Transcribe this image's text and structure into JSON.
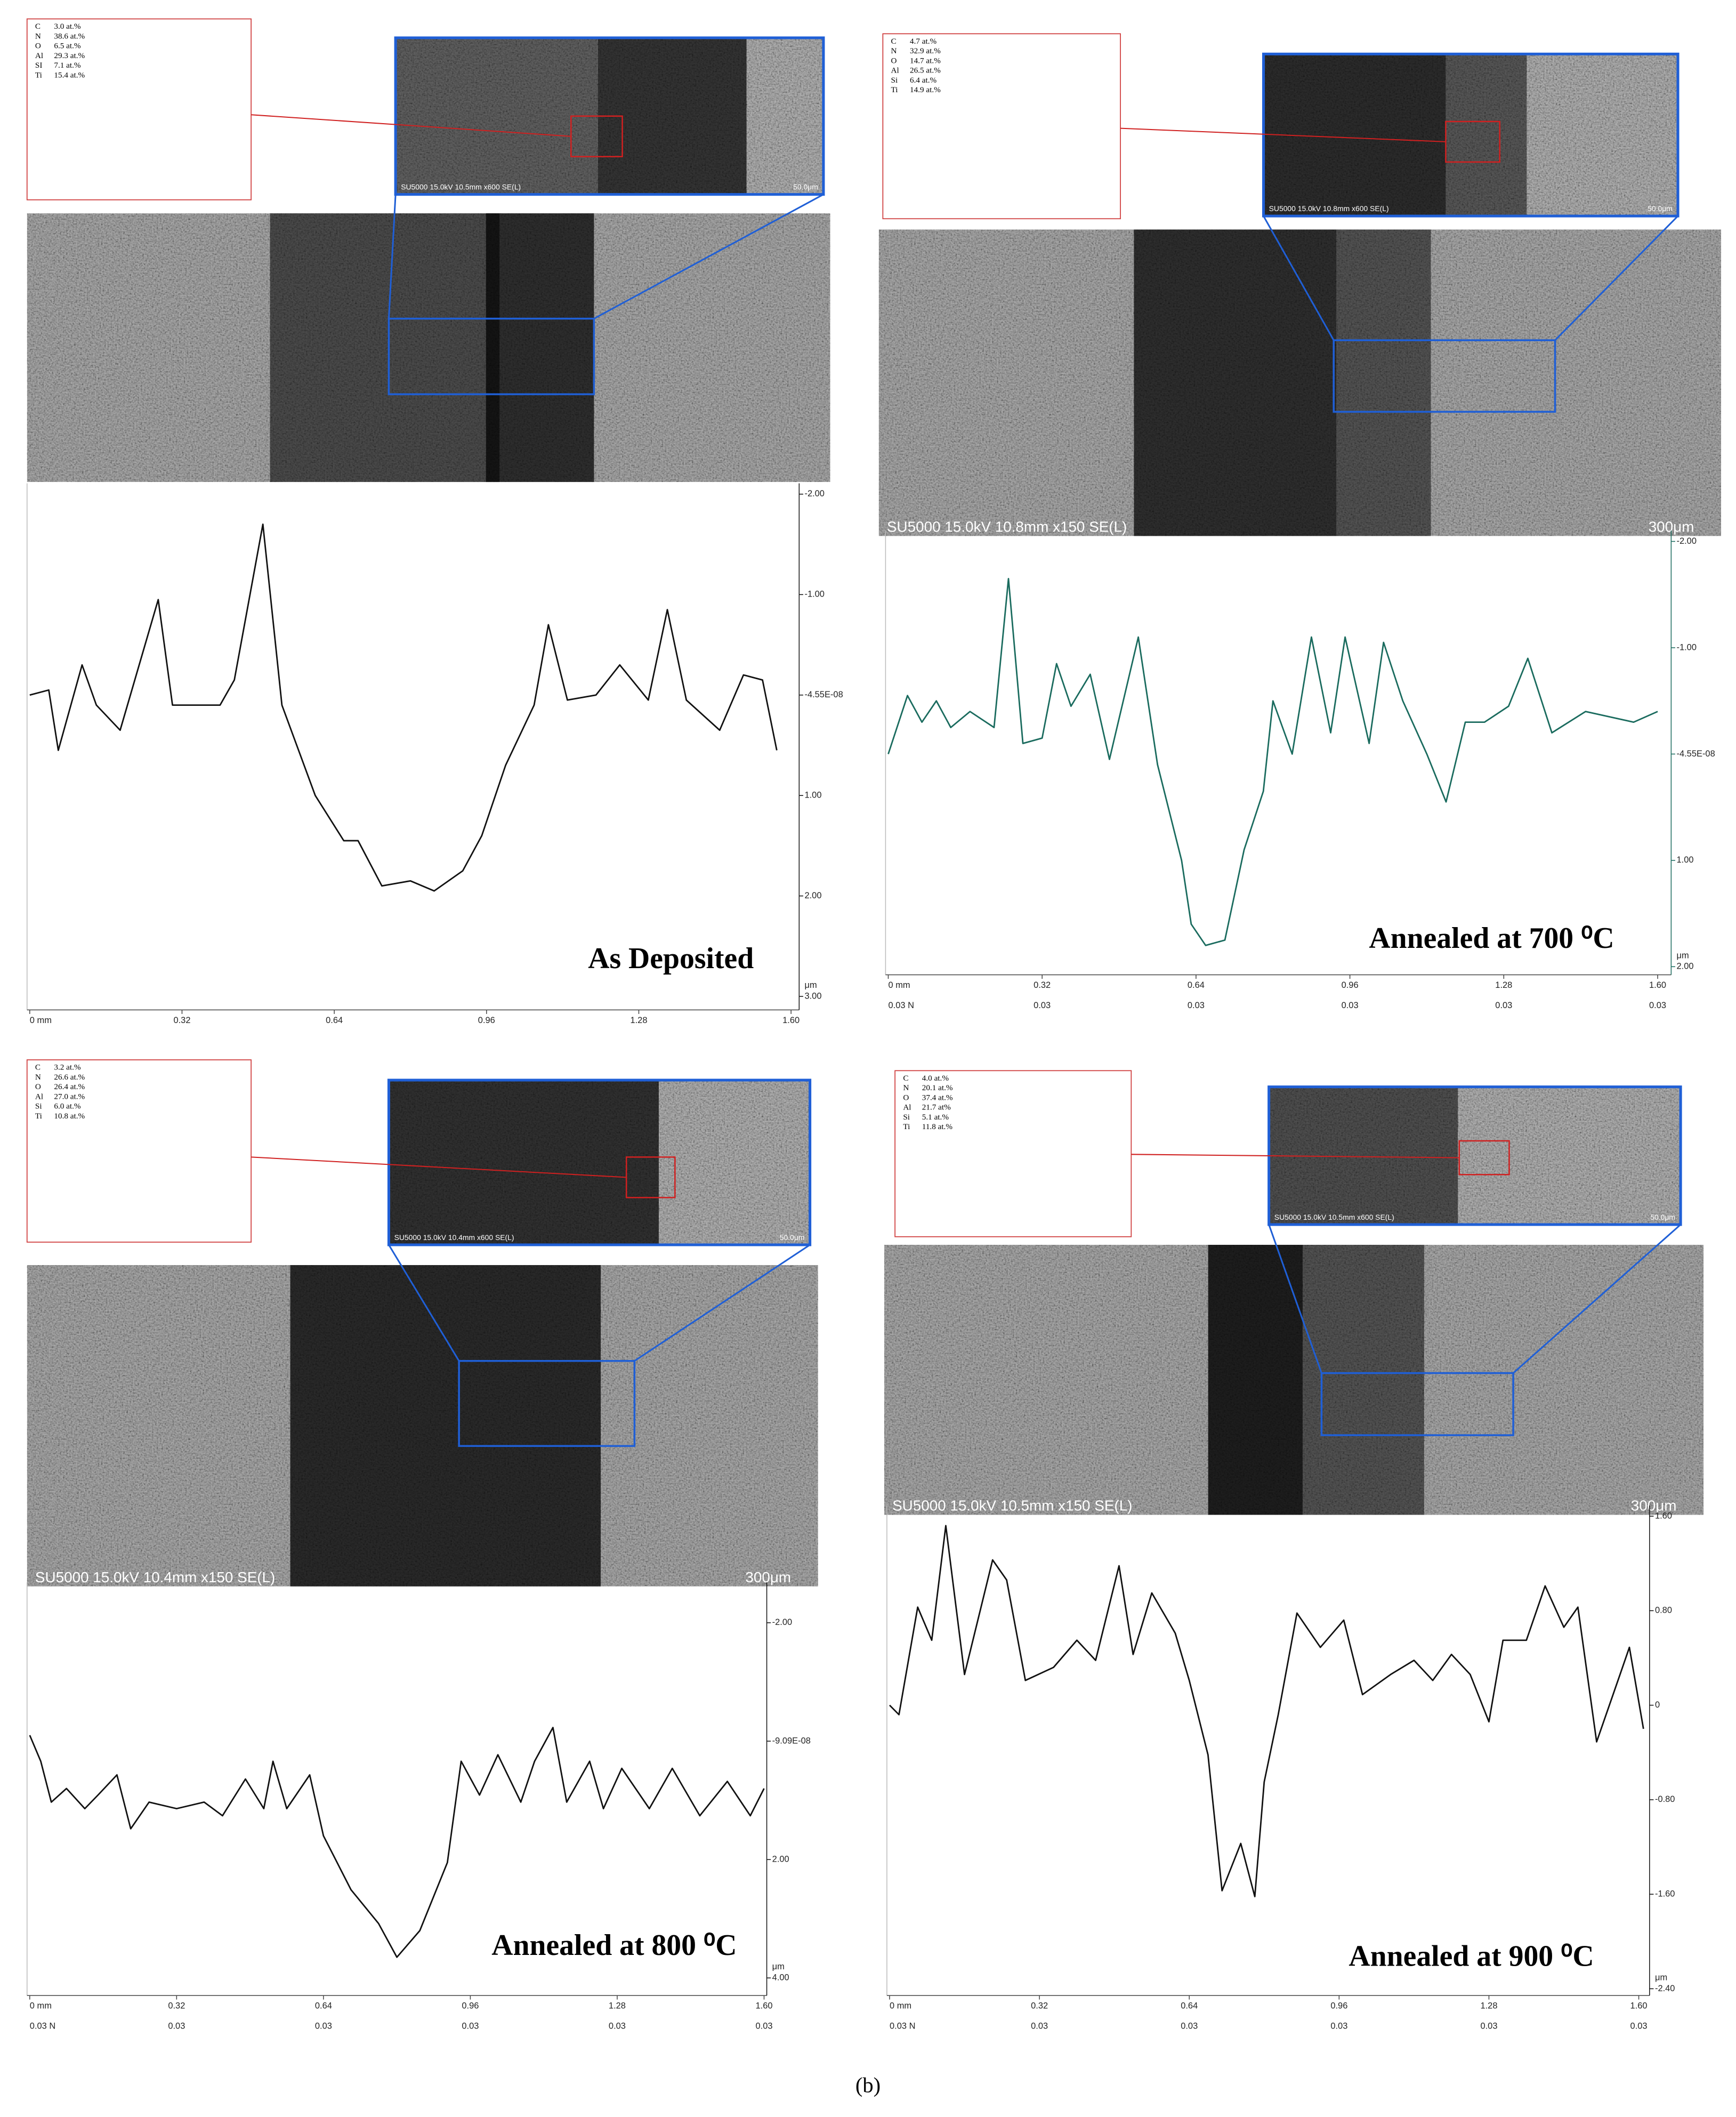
{
  "figure_label": "(b)",
  "chart_data": [
    {
      "type": "line",
      "title": "As Deposited",
      "color": "#111111",
      "composition": [
        [
          "C",
          "3.0 at.%"
        ],
        [
          "N",
          "38.6 at.%"
        ],
        [
          "O",
          "6.5 at.%"
        ],
        [
          "Al",
          "29.3 at.%"
        ],
        [
          "SI",
          "7.1 at.%"
        ],
        [
          "Ti",
          "15.4 at.%"
        ]
      ],
      "sem_inset_caption": "SU5000 15.0kV 10.5mm x600 SE(L)",
      "sem_inset_scale": "50.0μm",
      "x": [
        0,
        0.04,
        0.06,
        0.11,
        0.14,
        0.19,
        0.27,
        0.3,
        0.4,
        0.43,
        0.49,
        0.53,
        0.6,
        0.66,
        0.69,
        0.74,
        0.8,
        0.85,
        0.91,
        0.95,
        1.0,
        1.06,
        1.09,
        1.13,
        1.19,
        1.24,
        1.3,
        1.34,
        1.38,
        1.45,
        1.5,
        1.54,
        1.57
      ],
      "values": [
        0,
        -0.05,
        0.55,
        -0.3,
        0.1,
        0.35,
        -0.95,
        0.1,
        0.1,
        -0.15,
        -1.7,
        0.1,
        1.0,
        1.45,
        1.45,
        1.9,
        1.85,
        1.95,
        1.75,
        1.4,
        0.7,
        0.1,
        -0.7,
        0.05,
        0,
        -0.3,
        0.05,
        -0.85,
        0.05,
        0.35,
        -0.2,
        -0.15,
        0.55
      ],
      "xlim": [
        0,
        1.6
      ],
      "xticks": [
        {
          "value": 0,
          "label": "0 mm"
        },
        0.32,
        0.64,
        0.96,
        1.28,
        {
          "value": 1.6,
          "label": "1.60"
        }
      ],
      "ylim": [
        -2,
        3
      ],
      "y_inverted": true,
      "y_unit": "μm",
      "yticks": [
        {
          "value": -2,
          "label": "-2.00"
        },
        {
          "value": -1,
          "label": "-1.00"
        },
        {
          "value": -4.55e-08,
          "label": "-4.55E-08"
        },
        {
          "value": 1,
          "label": "1.00"
        },
        {
          "value": 2,
          "label": "2.00"
        },
        {
          "value": 3,
          "label": "3.00"
        }
      ]
    },
    {
      "type": "line",
      "title": "Annealed at 700 ⁰C",
      "color": "#1a6b5e",
      "composition": [
        [
          "C",
          "4.7 at.%"
        ],
        [
          "N",
          "32.9 at.%"
        ],
        [
          "O",
          "14.7 at.%"
        ],
        [
          "Al",
          "26.5 at.%"
        ],
        [
          "Si",
          "6.4 at.%"
        ],
        [
          "Ti",
          "14.9 at.%"
        ]
      ],
      "sem_inset_caption": "SU5000 15.0kV 10.8mm x600 SE(L)",
      "sem_inset_scale": "50.0μm",
      "sem_caption": "SU5000 15.0kV 10.8mm x150 SE(L)",
      "sem_scale": "300μm",
      "x": [
        0,
        0.04,
        0.07,
        0.1,
        0.13,
        0.17,
        0.22,
        0.25,
        0.28,
        0.32,
        0.35,
        0.38,
        0.42,
        0.46,
        0.52,
        0.56,
        0.61,
        0.63,
        0.66,
        0.7,
        0.74,
        0.78,
        0.8,
        0.84,
        0.88,
        0.92,
        0.95,
        1.0,
        1.03,
        1.07,
        1.12,
        1.16,
        1.2,
        1.24,
        1.29,
        1.33,
        1.38,
        1.45,
        1.55,
        1.6
      ],
      "values": [
        0,
        -0.55,
        -0.3,
        -0.5,
        -0.25,
        -0.4,
        -0.25,
        -1.65,
        -0.1,
        -0.15,
        -0.85,
        -0.45,
        -0.75,
        0.05,
        -1.1,
        0.1,
        1.0,
        1.6,
        1.8,
        1.75,
        0.9,
        0.35,
        -0.5,
        0,
        -1.1,
        -0.2,
        -1.1,
        -0.1,
        -1.05,
        -0.5,
        0,
        0.45,
        -0.3,
        -0.3,
        -0.45,
        -0.9,
        -0.2,
        -0.4,
        -0.3,
        -0.4
      ],
      "xlim": [
        0,
        1.6
      ],
      "xticks": [
        {
          "value": 0,
          "label": "0 mm"
        },
        0.32,
        0.64,
        0.96,
        1.28,
        {
          "value": 1.6,
          "label": "1.60"
        }
      ],
      "force_labels": [
        "0.03 N",
        "0.03",
        "0.03",
        "0.03",
        "0.03",
        "0.03"
      ],
      "ylim": [
        -2,
        2
      ],
      "y_inverted": true,
      "y_unit": "μm",
      "yticks": [
        {
          "value": -2,
          "label": "-2.00"
        },
        {
          "value": -1,
          "label": "-1.00"
        },
        {
          "value": -4.55e-08,
          "label": "-4.55E-08"
        },
        {
          "value": 1,
          "label": "1.00"
        },
        {
          "value": 2,
          "label": "2.00"
        }
      ]
    },
    {
      "type": "line",
      "title": "Annealed at 800 ⁰C",
      "color": "#111111",
      "composition": [
        [
          "C",
          "3.2 at.%"
        ],
        [
          "N",
          "26.6 at.%"
        ],
        [
          "O",
          "26.4 at.%"
        ],
        [
          "Al",
          "27.0 at.%"
        ],
        [
          "Si",
          "6.0 at.%"
        ],
        [
          "Ti",
          "10.8 at.%"
        ]
      ],
      "sem_inset_caption": "SU5000 15.0kV 10.4mm x600 SE(L)",
      "sem_inset_scale": "50.0μm",
      "sem_caption": "SU5000 15.0kV 10.4mm x150 SE(L)",
      "sem_scale": "300μm",
      "x": [
        0,
        0.024,
        0.047,
        0.08,
        0.12,
        0.15,
        0.19,
        0.22,
        0.26,
        0.32,
        0.38,
        0.42,
        0.47,
        0.51,
        0.53,
        0.56,
        0.61,
        0.64,
        0.7,
        0.76,
        0.8,
        0.85,
        0.91,
        0.94,
        0.98,
        1.02,
        1.07,
        1.1,
        1.14,
        1.17,
        1.22,
        1.25,
        1.29,
        1.35,
        1.4,
        1.46,
        1.52,
        1.57,
        1.6
      ],
      "values": [
        -0.1,
        0.34,
        1.03,
        0.8,
        1.14,
        0.9,
        0.57,
        1.48,
        1.03,
        1.14,
        1.03,
        1.26,
        0.64,
        1.14,
        0.34,
        1.14,
        0.57,
        1.6,
        2.51,
        3.08,
        3.65,
        3.2,
        2.05,
        0.34,
        0.91,
        0.23,
        1.03,
        0.34,
        -0.23,
        1.03,
        0.34,
        1.14,
        0.46,
        1.14,
        0.46,
        1.26,
        0.68,
        1.26,
        0.8
      ],
      "xlim": [
        0,
        1.6
      ],
      "xticks": [
        {
          "value": 0,
          "label": "0 mm"
        },
        0.32,
        0.64,
        0.96,
        1.28,
        {
          "value": 1.6,
          "label": "1.60"
        }
      ],
      "force_labels": [
        "0.03 N",
        "0.03",
        "0.03",
        "0.03",
        "0.03",
        "0.03"
      ],
      "ylim": [
        -2.5,
        4
      ],
      "y_inverted": true,
      "y_unit": "μm",
      "yticks": [
        {
          "value": -2,
          "label": "-2.00"
        },
        {
          "value": -9.09e-08,
          "label": "-9.09E-08"
        },
        {
          "value": 2,
          "label": "2.00"
        },
        {
          "value": 4,
          "label": "4.00"
        }
      ]
    },
    {
      "type": "line",
      "title": "Annealed at 900 ⁰C",
      "color": "#111111",
      "composition": [
        [
          "C",
          "4.0 at.%"
        ],
        [
          "N",
          "20.1 at.%"
        ],
        [
          "O",
          "37.4 at.%"
        ],
        [
          "Al",
          "21.7 at%"
        ],
        [
          "Si",
          "5.1 at.%"
        ],
        [
          "Ti",
          "11.8 at.%"
        ]
      ],
      "sem_inset_caption": "SU5000 15.0kV 10.5mm x600 SE(L)",
      "sem_inset_scale": "50.0μm",
      "sem_caption": "SU5000 15.0kV 10.5mm x150 SE(L)",
      "sem_scale": "300μm",
      "x": [
        0,
        0.02,
        0.06,
        0.09,
        0.12,
        0.16,
        0.22,
        0.25,
        0.29,
        0.35,
        0.4,
        0.44,
        0.49,
        0.52,
        0.56,
        0.61,
        0.64,
        0.68,
        0.71,
        0.75,
        0.78,
        0.8,
        0.83,
        0.87,
        0.92,
        0.97,
        1.01,
        1.07,
        1.12,
        1.16,
        1.2,
        1.24,
        1.28,
        1.31,
        1.36,
        1.4,
        1.44,
        1.47,
        1.51,
        1.56,
        1.58,
        1.61
      ],
      "values": [
        0,
        -0.08,
        0.83,
        0.55,
        1.52,
        0.26,
        1.23,
        1.06,
        0.21,
        0.32,
        0.55,
        0.38,
        1.18,
        0.43,
        0.95,
        0.61,
        0.21,
        -0.42,
        -1.57,
        -1.17,
        -1.62,
        -0.65,
        -0.08,
        0.78,
        0.49,
        0.72,
        0.09,
        0.26,
        0.38,
        0.21,
        0.43,
        0.26,
        -0.14,
        0.55,
        0.55,
        1.01,
        0.66,
        0.83,
        -0.31,
        0.26,
        0.49,
        -0.2
      ],
      "xlim": [
        0,
        1.6
      ],
      "xticks": [
        {
          "value": 0,
          "label": "0 mm"
        },
        0.32,
        0.64,
        0.96,
        1.28,
        {
          "value": 1.6,
          "label": "1.60"
        }
      ],
      "force_labels": [
        "0.03 N",
        "0.03",
        "0.03",
        "0.03",
        "0.03",
        "0.03"
      ],
      "ylim": [
        -2.4,
        1.6
      ],
      "y_inverted": false,
      "y_unit": "μm",
      "yticks": [
        {
          "value": 1.6,
          "label": "1.60"
        },
        {
          "value": 0.8,
          "label": "0.80"
        },
        0,
        {
          "value": -0.8,
          "label": "-0.80"
        },
        {
          "value": -1.6,
          "label": "-1.60"
        },
        {
          "value": -2.4,
          "label": "-2.40"
        }
      ]
    }
  ]
}
